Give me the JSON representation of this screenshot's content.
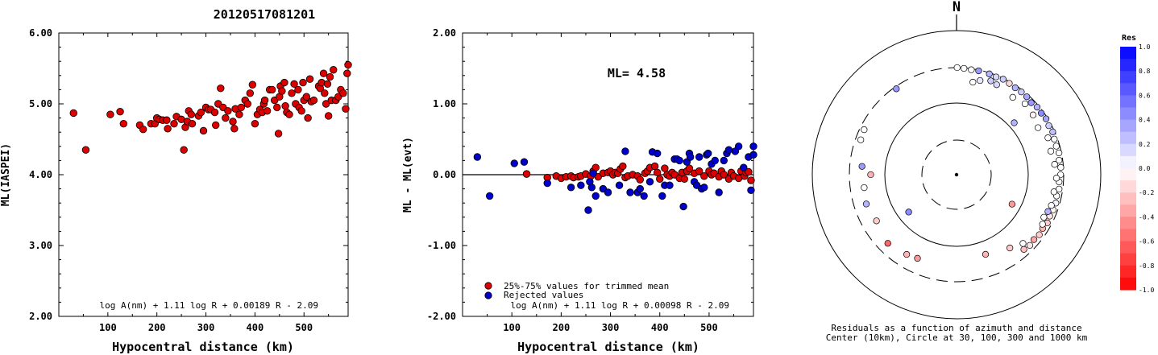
{
  "event_title": "20120517081201",
  "chart_data": [
    {
      "type": "scatter",
      "id": "ml_vs_distance",
      "xlabel": "Hypocentral distance (km)",
      "ylabel": "ML(IASPEI)",
      "xlim": [
        0,
        590
      ],
      "ylim": [
        2.0,
        6.0
      ],
      "xticks": [
        100,
        200,
        300,
        400,
        500
      ],
      "yticks": [
        2.0,
        3.0,
        4.0,
        5.0,
        6.0
      ],
      "ytick_labels": [
        "2.00",
        "3.00",
        "4.00",
        "5.00",
        "6.00"
      ],
      "formula": "log A(nm) + 1.11 log R + 0.00189 R - 2.09",
      "point_color": "#dd0000",
      "points": [
        [
          30,
          4.87
        ],
        [
          55,
          4.35
        ],
        [
          105,
          4.85
        ],
        [
          125,
          4.89
        ],
        [
          132,
          4.72
        ],
        [
          165,
          4.7
        ],
        [
          172,
          4.64
        ],
        [
          188,
          4.72
        ],
        [
          196,
          4.72
        ],
        [
          200,
          4.8
        ],
        [
          205,
          4.78
        ],
        [
          212,
          4.77
        ],
        [
          220,
          4.77
        ],
        [
          222,
          4.65
        ],
        [
          235,
          4.72
        ],
        [
          240,
          4.82
        ],
        [
          250,
          4.78
        ],
        [
          255,
          4.35
        ],
        [
          258,
          4.67
        ],
        [
          262,
          4.75
        ],
        [
          265,
          4.9
        ],
        [
          270,
          4.85
        ],
        [
          272,
          4.72
        ],
        [
          285,
          4.83
        ],
        [
          290,
          4.88
        ],
        [
          295,
          4.62
        ],
        [
          300,
          4.95
        ],
        [
          305,
          4.92
        ],
        [
          310,
          4.92
        ],
        [
          318,
          4.88
        ],
        [
          320,
          4.7
        ],
        [
          325,
          5.0
        ],
        [
          330,
          5.22
        ],
        [
          335,
          4.95
        ],
        [
          340,
          4.8
        ],
        [
          345,
          4.9
        ],
        [
          355,
          4.75
        ],
        [
          358,
          4.65
        ],
        [
          360,
          4.93
        ],
        [
          368,
          4.85
        ],
        [
          372,
          4.95
        ],
        [
          380,
          5.05
        ],
        [
          385,
          5.0
        ],
        [
          390,
          5.15
        ],
        [
          395,
          5.27
        ],
        [
          400,
          4.72
        ],
        [
          405,
          4.85
        ],
        [
          410,
          4.92
        ],
        [
          415,
          4.88
        ],
        [
          418,
          5.0
        ],
        [
          420,
          5.05
        ],
        [
          425,
          4.9
        ],
        [
          430,
          5.2
        ],
        [
          435,
          5.2
        ],
        [
          440,
          5.05
        ],
        [
          445,
          4.95
        ],
        [
          448,
          4.58
        ],
        [
          450,
          5.1
        ],
        [
          452,
          5.25
        ],
        [
          455,
          5.18
        ],
        [
          460,
          5.3
        ],
        [
          462,
          4.97
        ],
        [
          465,
          4.88
        ],
        [
          470,
          4.85
        ],
        [
          475,
          5.15
        ],
        [
          480,
          5.28
        ],
        [
          483,
          5.0
        ],
        [
          488,
          5.2
        ],
        [
          490,
          4.95
        ],
        [
          495,
          4.9
        ],
        [
          498,
          5.3
        ],
        [
          500,
          5.05
        ],
        [
          505,
          5.1
        ],
        [
          508,
          4.8
        ],
        [
          512,
          5.35
        ],
        [
          515,
          5.03
        ],
        [
          520,
          5.05
        ],
        [
          530,
          5.25
        ],
        [
          533,
          5.22
        ],
        [
          536,
          5.3
        ],
        [
          540,
          5.43
        ],
        [
          542,
          5.15
        ],
        [
          545,
          5.0
        ],
        [
          548,
          5.28
        ],
        [
          550,
          4.83
        ],
        [
          553,
          5.38
        ],
        [
          556,
          5.05
        ],
        [
          560,
          5.48
        ],
        [
          565,
          5.05
        ],
        [
          570,
          5.1
        ],
        [
          575,
          5.2
        ],
        [
          580,
          5.15
        ],
        [
          585,
          4.93
        ],
        [
          588,
          5.43
        ],
        [
          590,
          5.55
        ]
      ]
    },
    {
      "type": "scatter",
      "id": "residual_vs_distance",
      "xlabel": "Hypocentral distance (km)",
      "ylabel": "ML - ML(evt)",
      "xlim": [
        0,
        590
      ],
      "ylim": [
        -2.0,
        2.0
      ],
      "xticks": [
        100,
        200,
        300,
        400,
        500
      ],
      "yticks": [
        -2.0,
        -1.0,
        0.0,
        1.0,
        2.0
      ],
      "ytick_labels": [
        "-2.00",
        "-1.00",
        "0.00",
        "1.00",
        "2.00"
      ],
      "annotation": "ML= 4.58",
      "formula": "log A(nm) + 1.11 log R + 0.00098 R - 2.09",
      "legend": [
        {
          "label": "25%-75% values for trimmed mean",
          "color": "#dd0000"
        },
        {
          "label": "Rejected values",
          "color": "#0000cc"
        }
      ],
      "series": [
        {
          "name": "25%-75% values for trimmed mean",
          "color": "#dd0000",
          "points": [
            [
              130,
              0.01
            ],
            [
              172,
              -0.04
            ],
            [
              190,
              -0.02
            ],
            [
              200,
              -0.05
            ],
            [
              210,
              -0.03
            ],
            [
              220,
              -0.02
            ],
            [
              225,
              -0.04
            ],
            [
              235,
              -0.03
            ],
            [
              240,
              -0.02
            ],
            [
              250,
              0.01
            ],
            [
              260,
              -0.02
            ],
            [
              265,
              0.05
            ],
            [
              270,
              0.1
            ],
            [
              275,
              -0.03
            ],
            [
              285,
              0.02
            ],
            [
              295,
              0.03
            ],
            [
              300,
              0.05
            ],
            [
              305,
              0.0
            ],
            [
              310,
              0.03
            ],
            [
              315,
              0.02
            ],
            [
              320,
              0.08
            ],
            [
              325,
              0.12
            ],
            [
              330,
              -0.04
            ],
            [
              335,
              -0.02
            ],
            [
              345,
              0.0
            ],
            [
              355,
              -0.02
            ],
            [
              360,
              -0.07
            ],
            [
              370,
              0.02
            ],
            [
              375,
              0.05
            ],
            [
              380,
              0.1
            ],
            [
              390,
              0.12
            ],
            [
              395,
              0.03
            ],
            [
              400,
              -0.06
            ],
            [
              410,
              0.09
            ],
            [
              415,
              0.0
            ],
            [
              420,
              -0.02
            ],
            [
              425,
              0.03
            ],
            [
              430,
              0.0
            ],
            [
              440,
              -0.05
            ],
            [
              445,
              0.03
            ],
            [
              450,
              -0.06
            ],
            [
              455,
              0.05
            ],
            [
              460,
              0.09
            ],
            [
              470,
              0.02
            ],
            [
              480,
              0.05
            ],
            [
              490,
              -0.02
            ],
            [
              500,
              0.05
            ],
            [
              505,
              0.0
            ],
            [
              510,
              0.02
            ],
            [
              520,
              -0.03
            ],
            [
              525,
              0.05
            ],
            [
              530,
              0.0
            ],
            [
              540,
              -0.06
            ],
            [
              545,
              0.03
            ],
            [
              550,
              -0.02
            ],
            [
              560,
              -0.05
            ],
            [
              565,
              0.05
            ],
            [
              572,
              -0.02
            ],
            [
              575,
              0.03
            ],
            [
              580,
              0.04
            ],
            [
              585,
              -0.08
            ]
          ]
        },
        {
          "name": "Rejected values",
          "color": "#0000cc",
          "points": [
            [
              30,
              0.25
            ],
            [
              55,
              -0.3
            ],
            [
              105,
              0.16
            ],
            [
              125,
              0.18
            ],
            [
              172,
              -0.12
            ],
            [
              220,
              -0.18
            ],
            [
              240,
              -0.15
            ],
            [
              255,
              -0.5
            ],
            [
              258,
              -0.1
            ],
            [
              262,
              -0.18
            ],
            [
              265,
              0.02
            ],
            [
              270,
              -0.3
            ],
            [
              285,
              -0.2
            ],
            [
              295,
              -0.25
            ],
            [
              318,
              -0.15
            ],
            [
              330,
              0.33
            ],
            [
              340,
              -0.25
            ],
            [
              355,
              -0.25
            ],
            [
              360,
              -0.2
            ],
            [
              368,
              -0.3
            ],
            [
              380,
              -0.1
            ],
            [
              385,
              0.32
            ],
            [
              395,
              0.3
            ],
            [
              405,
              -0.3
            ],
            [
              410,
              -0.15
            ],
            [
              420,
              -0.15
            ],
            [
              430,
              0.22
            ],
            [
              435,
              0.22
            ],
            [
              440,
              0.2
            ],
            [
              448,
              -0.45
            ],
            [
              455,
              0.18
            ],
            [
              460,
              0.3
            ],
            [
              462,
              0.25
            ],
            [
              470,
              -0.1
            ],
            [
              475,
              -0.15
            ],
            [
              480,
              0.25
            ],
            [
              485,
              -0.2
            ],
            [
              490,
              -0.18
            ],
            [
              495,
              0.28
            ],
            [
              498,
              0.3
            ],
            [
              505,
              0.15
            ],
            [
              512,
              0.2
            ],
            [
              520,
              -0.25
            ],
            [
              530,
              0.2
            ],
            [
              536,
              0.3
            ],
            [
              540,
              0.35
            ],
            [
              553,
              0.33
            ],
            [
              560,
              0.4
            ],
            [
              570,
              0.1
            ],
            [
              580,
              0.25
            ],
            [
              585,
              -0.22
            ],
            [
              590,
              0.4
            ],
            [
              592,
              0.28
            ]
          ]
        }
      ]
    },
    {
      "type": "scatter",
      "id": "azimuth_distance_residuals",
      "north_label": "N",
      "caption_line1": "Residuals as a function of azimuth and distance",
      "caption_line2": "Center (10km), Circle at 30, 100, 300 and 1000 km",
      "colorbar_title": "Res",
      "colorbar_ticks": [
        "1.0",
        "0.8",
        "0.6",
        "0.4",
        "0.2",
        "0.0",
        "-0.2",
        "-0.4",
        "-0.6",
        "-0.8",
        "-1.0"
      ],
      "colorbar_range": [
        -1.0,
        1.0
      ],
      "positive_color": "#0000ff",
      "negative_color": "#ff0000",
      "points": [
        [
          0.3,
          300,
          0.0
        ],
        [
          4,
          295,
          0.0
        ],
        [
          8,
          290,
          0.0
        ],
        [
          12,
          292,
          0.4
        ],
        [
          18,
          290,
          0.3
        ],
        [
          22,
          285,
          0.15
        ],
        [
          26,
          292,
          0.2
        ],
        [
          30,
          285,
          -0.15
        ],
        [
          34,
          280,
          0.3
        ],
        [
          38,
          282,
          0.2
        ],
        [
          42,
          280,
          0.35
        ],
        [
          46,
          270,
          0.4
        ],
        [
          50,
          282,
          0.3
        ],
        [
          54,
          278,
          0.45
        ],
        [
          58,
          285,
          0.35
        ],
        [
          62,
          276,
          0.2
        ],
        [
          66,
          283,
          0.25
        ],
        [
          70,
          272,
          0.0
        ],
        [
          74,
          270,
          0.0
        ],
        [
          78,
          278,
          0.0
        ],
        [
          82,
          268,
          0.0
        ],
        [
          86,
          276,
          0.0
        ],
        [
          90,
          272,
          0.0
        ],
        [
          94,
          262,
          0.0
        ],
        [
          98,
          268,
          0.0
        ],
        [
          102,
          258,
          0.0
        ],
        [
          106,
          266,
          0.05
        ],
        [
          110,
          262,
          -0.05
        ],
        [
          114,
          255,
          -0.1
        ],
        [
          118,
          262,
          -0.2
        ],
        [
          122,
          252,
          -0.3
        ],
        [
          126,
          258,
          -0.2
        ],
        [
          130,
          248,
          -0.35
        ],
        [
          134,
          255,
          -0.1
        ],
        [
          138,
          245,
          -0.25
        ],
        [
          10,
          200,
          0.0
        ],
        [
          14,
          220,
          0.1
        ],
        [
          20,
          240,
          0.2
        ],
        [
          24,
          230,
          0.15
        ],
        [
          36,
          210,
          0.0
        ],
        [
          44,
          230,
          0.0
        ],
        [
          52,
          220,
          -0.05
        ],
        [
          60,
          200,
          0.0
        ],
        [
          68,
          230,
          0.0
        ],
        [
          76,
          220,
          0.0
        ],
        [
          84,
          230,
          0.0
        ],
        [
          92,
          240,
          0.0
        ],
        [
          100,
          232,
          0.0
        ],
        [
          108,
          238,
          0.0
        ],
        [
          112,
          230,
          0.3
        ],
        [
          116,
          220,
          0.0
        ],
        [
          120,
          235,
          0.0
        ],
        [
          136,
          210,
          0.0
        ],
        [
          144,
          180,
          -0.2
        ],
        [
          160,
          150,
          -0.3
        ],
        [
          205,
          190,
          -0.4
        ],
        [
          212,
          200,
          -0.3
        ],
        [
          225,
          220,
          -0.6
        ],
        [
          240,
          190,
          -0.2
        ],
        [
          252,
          205,
          0.3
        ],
        [
          262,
          195,
          0.0
        ],
        [
          275,
          205,
          0.4
        ],
        [
          290,
          255,
          0.0
        ],
        [
          296,
          262,
          0.0
        ],
        [
          325,
          280,
          0.4
        ],
        [
          48,
          120,
          0.3
        ],
        [
          118,
          75,
          -0.4
        ],
        [
          232,
          70,
          0.45
        ],
        [
          270,
          155,
          -0.3
        ]
      ]
    }
  ]
}
